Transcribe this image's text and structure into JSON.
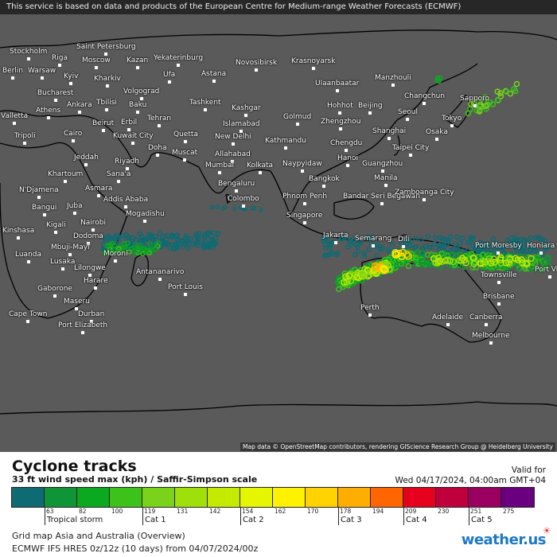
{
  "header": {
    "notice": "This service is based on data and products of the European Centre for Medium-range Weather Forecasts (ECMWF)"
  },
  "map": {
    "attribution": "Map data © OpenStreetMap contributors, rendering GIScience Research Group @ Heidelberg University",
    "background_color": "#5a5a5a",
    "cities": [
      "Stockholm",
      "Saint Petersburg",
      "Riga",
      "Moscow",
      "Kazan",
      "Yekaterinburg",
      "Novosibirsk",
      "Krasnoyarsk",
      "Berlin",
      "Warsaw",
      "Kyiv",
      "Kharkiv",
      "Ufa",
      "Astana",
      "Ulaanbaatar",
      "Manzhouli",
      "Volgograd",
      "Bucharest",
      "Changchun",
      "Sapporo",
      "Ankara",
      "Tbilisi",
      "Baku",
      "Tashkent",
      "Kashgar",
      "Hohhot",
      "Beijing",
      "Seoul",
      "Valletta",
      "Athens",
      "Golmud",
      "Zhengzhou",
      "Tokyo",
      "Tehran",
      "Beirut",
      "Erbil",
      "Islamabad",
      "Osaka",
      "Tripoli",
      "Cairo",
      "Kuwait City",
      "Quetta",
      "New Delhi",
      "Kathmandu",
      "Chengdu",
      "Shanghai",
      "Taipei City",
      "Doha",
      "Muscat",
      "Allahabad",
      "Jeddah",
      "Riyadh",
      "Mumbai",
      "Kolkata",
      "Naypyidaw",
      "Hanoi",
      "Guangzhou",
      "Khartoum",
      "Sana'a",
      "Bangkok",
      "Manila",
      "Asmara",
      "Bengaluru",
      "N'Djamena",
      "Addis Ababa",
      "Colombo",
      "Phnom Penh",
      "Bandar Seri Begawan",
      "Zamboanga City",
      "Bangui",
      "Juba",
      "Mogadishu",
      "Singapore",
      "Kinshasa",
      "Kigali",
      "Nairobi",
      "Dodoma",
      "Jakarta",
      "Semarang",
      "Dili",
      "Port Moresby",
      "Honiara",
      "Mbuji-Mayi",
      "Moroni",
      "Luanda",
      "Lusaka",
      "Lilongwe",
      "Port Vila",
      "Antananarivo",
      "Harare",
      "Townsville",
      "Port Louis",
      "Gaborone",
      "Brisbane",
      "Maseru",
      "Cape Town",
      "Durban",
      "Perth",
      "Adelaide",
      "Canberra",
      "Port Elizabeth",
      "Melbourne"
    ]
  },
  "legend": {
    "title": "Cyclone tracks",
    "subtitle": "33 ft wind speed max (kph) / Saffir-Simpson scale",
    "valid_label": "Valid for",
    "valid_date": "Wed 04/17/2024, 04:00am GMT+04",
    "colors": [
      "#0f6b73",
      "#0f9437",
      "#0aa91f",
      "#3dc21a",
      "#7ad31a",
      "#a0e00a",
      "#c4ea00",
      "#e6f500",
      "#fff200",
      "#ffd200",
      "#ffae00",
      "#ff6600",
      "#e6001e",
      "#c0003c",
      "#9b0060",
      "#6a0080"
    ],
    "ticks": [
      "63",
      "82",
      "100",
      "119",
      "131",
      "142",
      "154",
      "162",
      "170",
      "178",
      "194",
      "209",
      "230",
      "251",
      "275"
    ],
    "categories": [
      "Tropical storm",
      "Cat 1",
      "Cat 2",
      "Cat 3",
      "Cat 4",
      "Cat 5"
    ],
    "grid_name": "Grid map Asia and Australia (Overview)",
    "model": "ECMWF IFS HRES 0z/12z (10 days) from  04/07/2024/00z",
    "logo": "weather.us"
  }
}
